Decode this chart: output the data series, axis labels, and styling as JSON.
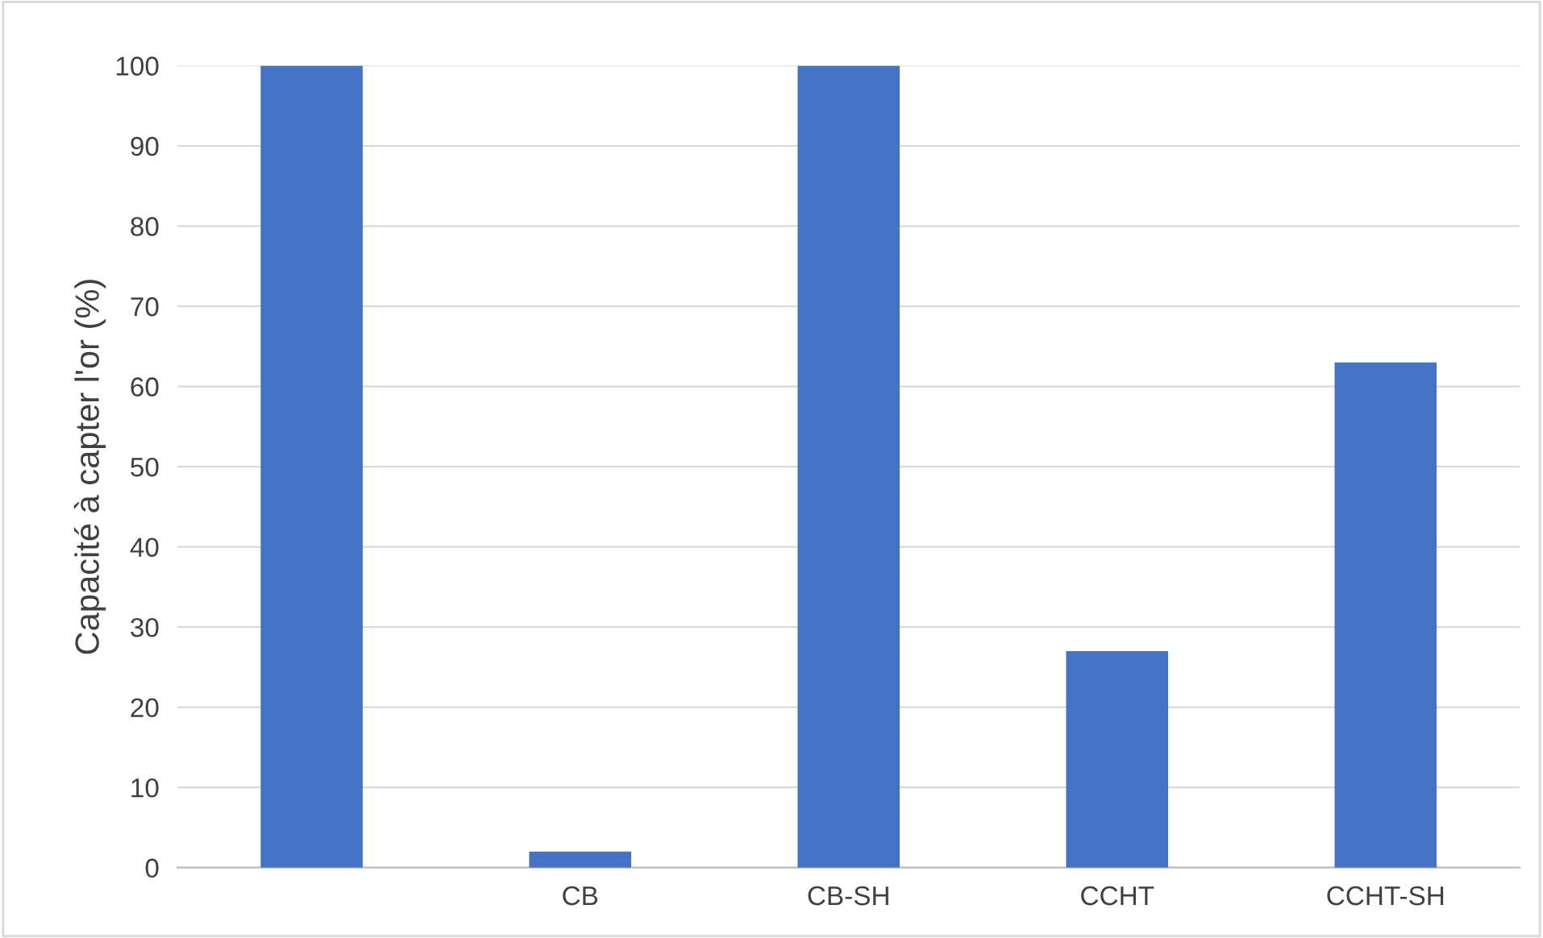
{
  "chart_data": {
    "type": "bar",
    "ylabel": "Capacité à capter l'or (%)",
    "categories": [
      null,
      "CB",
      "CB-SH",
      "CCHT",
      "CCHT-SH"
    ],
    "values": [
      100,
      2,
      100,
      27,
      63
    ],
    "color": "#4472c4",
    "ylim": [
      0,
      100
    ],
    "yticks": [
      0,
      10,
      20,
      30,
      40,
      50,
      60,
      70,
      80,
      90,
      100
    ],
    "grid": "y"
  }
}
